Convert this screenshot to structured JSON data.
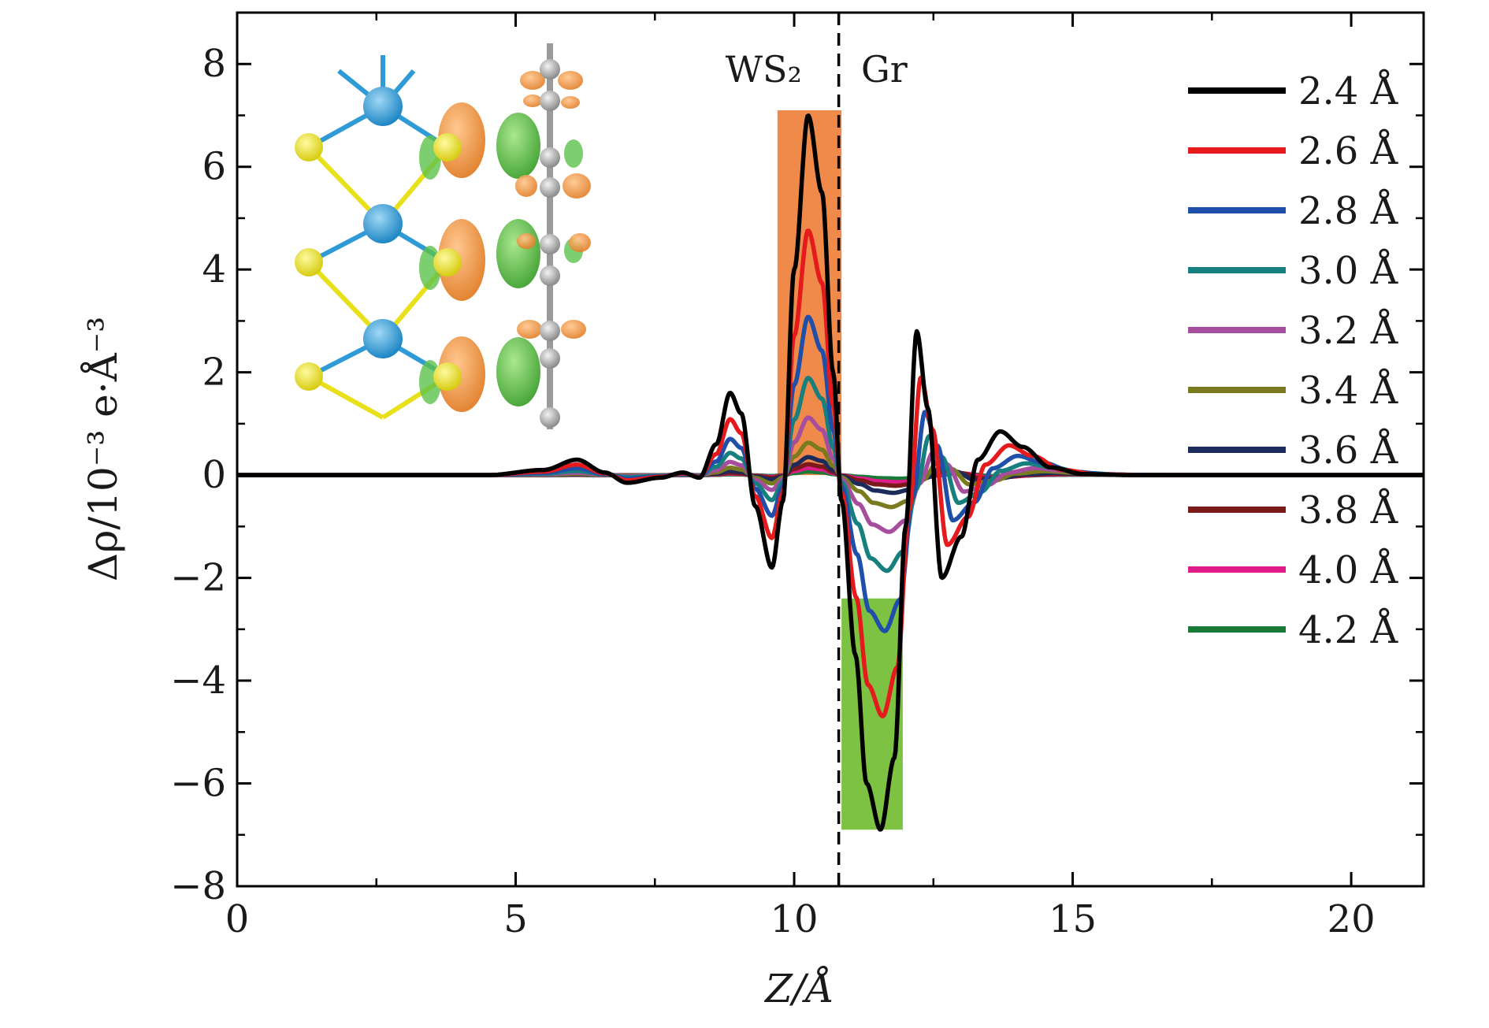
{
  "chart_data": {
    "type": "line",
    "xlabel": "Z/Å",
    "ylabel": "Δρ/10⁻³ e·Å⁻³",
    "xlim": [
      0,
      21.3
    ],
    "ylim": [
      -8,
      9
    ],
    "xticks": [
      0,
      5,
      10,
      15,
      20
    ],
    "xtick_labels": [
      "0",
      "5",
      "10",
      "15",
      "20"
    ],
    "yticks": [
      -8,
      -6,
      -4,
      -2,
      0,
      2,
      4,
      6,
      8
    ],
    "ytick_labels": [
      "−8",
      "−6",
      "−4",
      "−2",
      "0",
      "2",
      "4",
      "6",
      "8"
    ],
    "grid": false,
    "legend_position": "right",
    "interface_z": 10.8,
    "region_labels": {
      "left": "WS₂",
      "right": "Gr"
    },
    "highlight_bars": [
      {
        "x0": 9.7,
        "x1": 10.85,
        "y0": 0,
        "y1": 7.1,
        "color": "#f08a4b"
      },
      {
        "x0": 10.85,
        "x1": 11.95,
        "y0": -6.9,
        "y1": -2.4,
        "color": "#7dc242"
      }
    ],
    "inset": {
      "description": "charge-difference isosurface of WS2/graphene interface",
      "colors": {
        "W": "#2e9bd6",
        "S": "#e8e01a",
        "C": "#b0b0b0",
        "accumulation": "#f0913a",
        "depletion": "#4cb83a"
      }
    },
    "series": [
      {
        "name": "2.4 Å",
        "color": "#000000",
        "scale": 1.0
      },
      {
        "name": "2.6 Å",
        "color": "#e41a1c",
        "scale": 0.68
      },
      {
        "name": "2.8 Å",
        "color": "#1f4fa8",
        "scale": 0.44
      },
      {
        "name": "3.0 Å",
        "color": "#17807e",
        "scale": 0.27
      },
      {
        "name": "3.2 Å",
        "color": "#a64d9e",
        "scale": 0.16
      },
      {
        "name": "3.4 Å",
        "color": "#7a7a1e",
        "scale": 0.09
      },
      {
        "name": "3.6 Å",
        "color": "#1c2b5c",
        "scale": 0.05
      },
      {
        "name": "3.8 Å",
        "color": "#7a1a1a",
        "scale": 0.03
      },
      {
        "name": "4.0 Å",
        "color": "#e01c8a",
        "scale": 0.02
      },
      {
        "name": "4.2 Å",
        "color": "#1a7a3a",
        "scale": 0.01
      }
    ],
    "reference_curve_2_4": {
      "x": [
        0,
        4.5,
        5.5,
        6.1,
        6.6,
        7.0,
        7.6,
        8.0,
        8.3,
        8.6,
        8.85,
        9.05,
        9.3,
        9.6,
        9.8,
        10.0,
        10.25,
        10.5,
        10.7,
        10.85,
        11.1,
        11.3,
        11.55,
        11.8,
        12.0,
        12.2,
        12.4,
        12.65,
        13.0,
        13.3,
        13.7,
        14.1,
        14.6,
        15.2,
        16,
        21.3
      ],
      "y": [
        0,
        0,
        0.1,
        0.3,
        0.05,
        -0.15,
        -0.05,
        0.05,
        -0.05,
        0.6,
        1.6,
        1.2,
        -0.6,
        -1.8,
        -0.5,
        4.0,
        7.0,
        5.5,
        2.0,
        -0.5,
        -3.5,
        -6.0,
        -6.9,
        -5.5,
        -1.0,
        2.8,
        1.3,
        -2.0,
        -1.2,
        0.3,
        0.85,
        0.55,
        0.15,
        0.02,
        0,
        0
      ]
    }
  }
}
